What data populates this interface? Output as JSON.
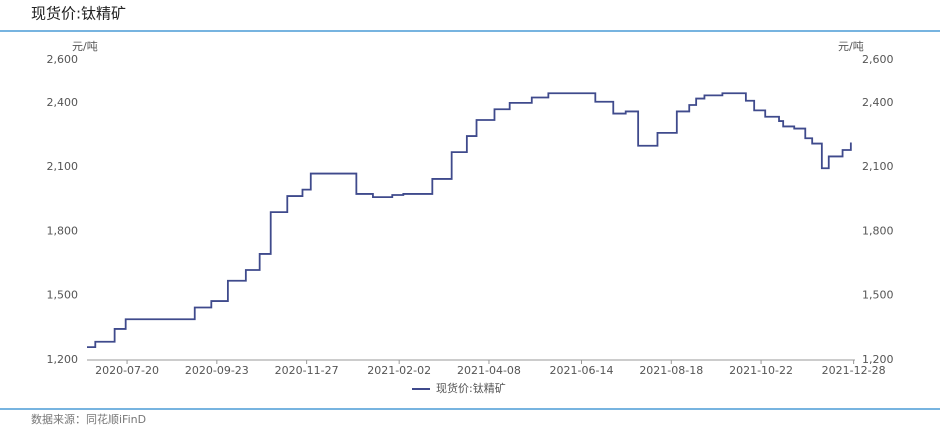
{
  "chart_data": {
    "type": "line",
    "title": "现货价:钛精矿",
    "source": "数据来源：同花顺iFinD",
    "y_unit": "元/吨",
    "y2_unit": "元/吨",
    "step": true,
    "grid": false,
    "legend": "bottom",
    "x": [
      "2020-06-21",
      "2020-06-27",
      "2020-07-11",
      "2020-07-19",
      "2020-09-07",
      "2020-09-19",
      "2020-10-01",
      "2020-10-14",
      "2020-10-24",
      "2020-11-01",
      "2020-11-13",
      "2020-11-24",
      "2020-11-30",
      "2021-01-02",
      "2021-01-14",
      "2021-01-28",
      "2021-02-05",
      "2021-02-26",
      "2021-03-12",
      "2021-03-23",
      "2021-03-30",
      "2021-04-12",
      "2021-04-23",
      "2021-05-09",
      "2021-05-21",
      "2021-06-24",
      "2021-07-07",
      "2021-07-16",
      "2021-07-25",
      "2021-08-08",
      "2021-08-22",
      "2021-08-31",
      "2021-09-05",
      "2021-09-11",
      "2021-09-24",
      "2021-10-11",
      "2021-10-17",
      "2021-10-25",
      "2021-11-04",
      "2021-11-07",
      "2021-11-15",
      "2021-11-23",
      "2021-11-28",
      "2021-12-05",
      "2021-12-10",
      "2021-12-20",
      "2021-12-26"
    ],
    "series": [
      {
        "name": "现货价:钛精矿",
        "color": "#3f4a8c",
        "values": [
          1260,
          1285,
          1345,
          1390,
          1445,
          1475,
          1570,
          1620,
          1695,
          1890,
          1965,
          1995,
          2070,
          1975,
          1960,
          1970,
          1975,
          2045,
          2170,
          2245,
          2320,
          2370,
          2400,
          2425,
          2445,
          2405,
          2350,
          2360,
          2200,
          2260,
          2360,
          2390,
          2420,
          2435,
          2445,
          2410,
          2365,
          2335,
          2315,
          2290,
          2280,
          2235,
          2210,
          2095,
          2150,
          2180,
          2215
        ]
      }
    ],
    "xlim": [
      "2020-06-21",
      "2021-12-29"
    ],
    "xticks": [
      "2020-07-20",
      "2020-09-23",
      "2020-11-27",
      "2021-02-02",
      "2021-04-08",
      "2021-06-14",
      "2021-08-18",
      "2021-10-22",
      "2021-12-28"
    ],
    "ylim": [
      1200,
      2600
    ],
    "yticks": [
      {
        "value": 1200,
        "label": "1,200"
      },
      {
        "value": 1500,
        "label": "1,500"
      },
      {
        "value": 1800,
        "label": "1,800"
      },
      {
        "value": 2100,
        "label": "2,100"
      },
      {
        "value": 2400,
        "label": "2,400"
      },
      {
        "value": 2600,
        "label": "2,600"
      }
    ],
    "y2lim": [
      1200,
      2600
    ],
    "y2ticks": [
      {
        "value": 1200,
        "label": "1,200"
      },
      {
        "value": 1500,
        "label": "1,500"
      },
      {
        "value": 1800,
        "label": "1,800"
      },
      {
        "value": 2100,
        "label": "2,100"
      },
      {
        "value": 2400,
        "label": "2,400"
      },
      {
        "value": 2600,
        "label": "2,600"
      }
    ]
  }
}
